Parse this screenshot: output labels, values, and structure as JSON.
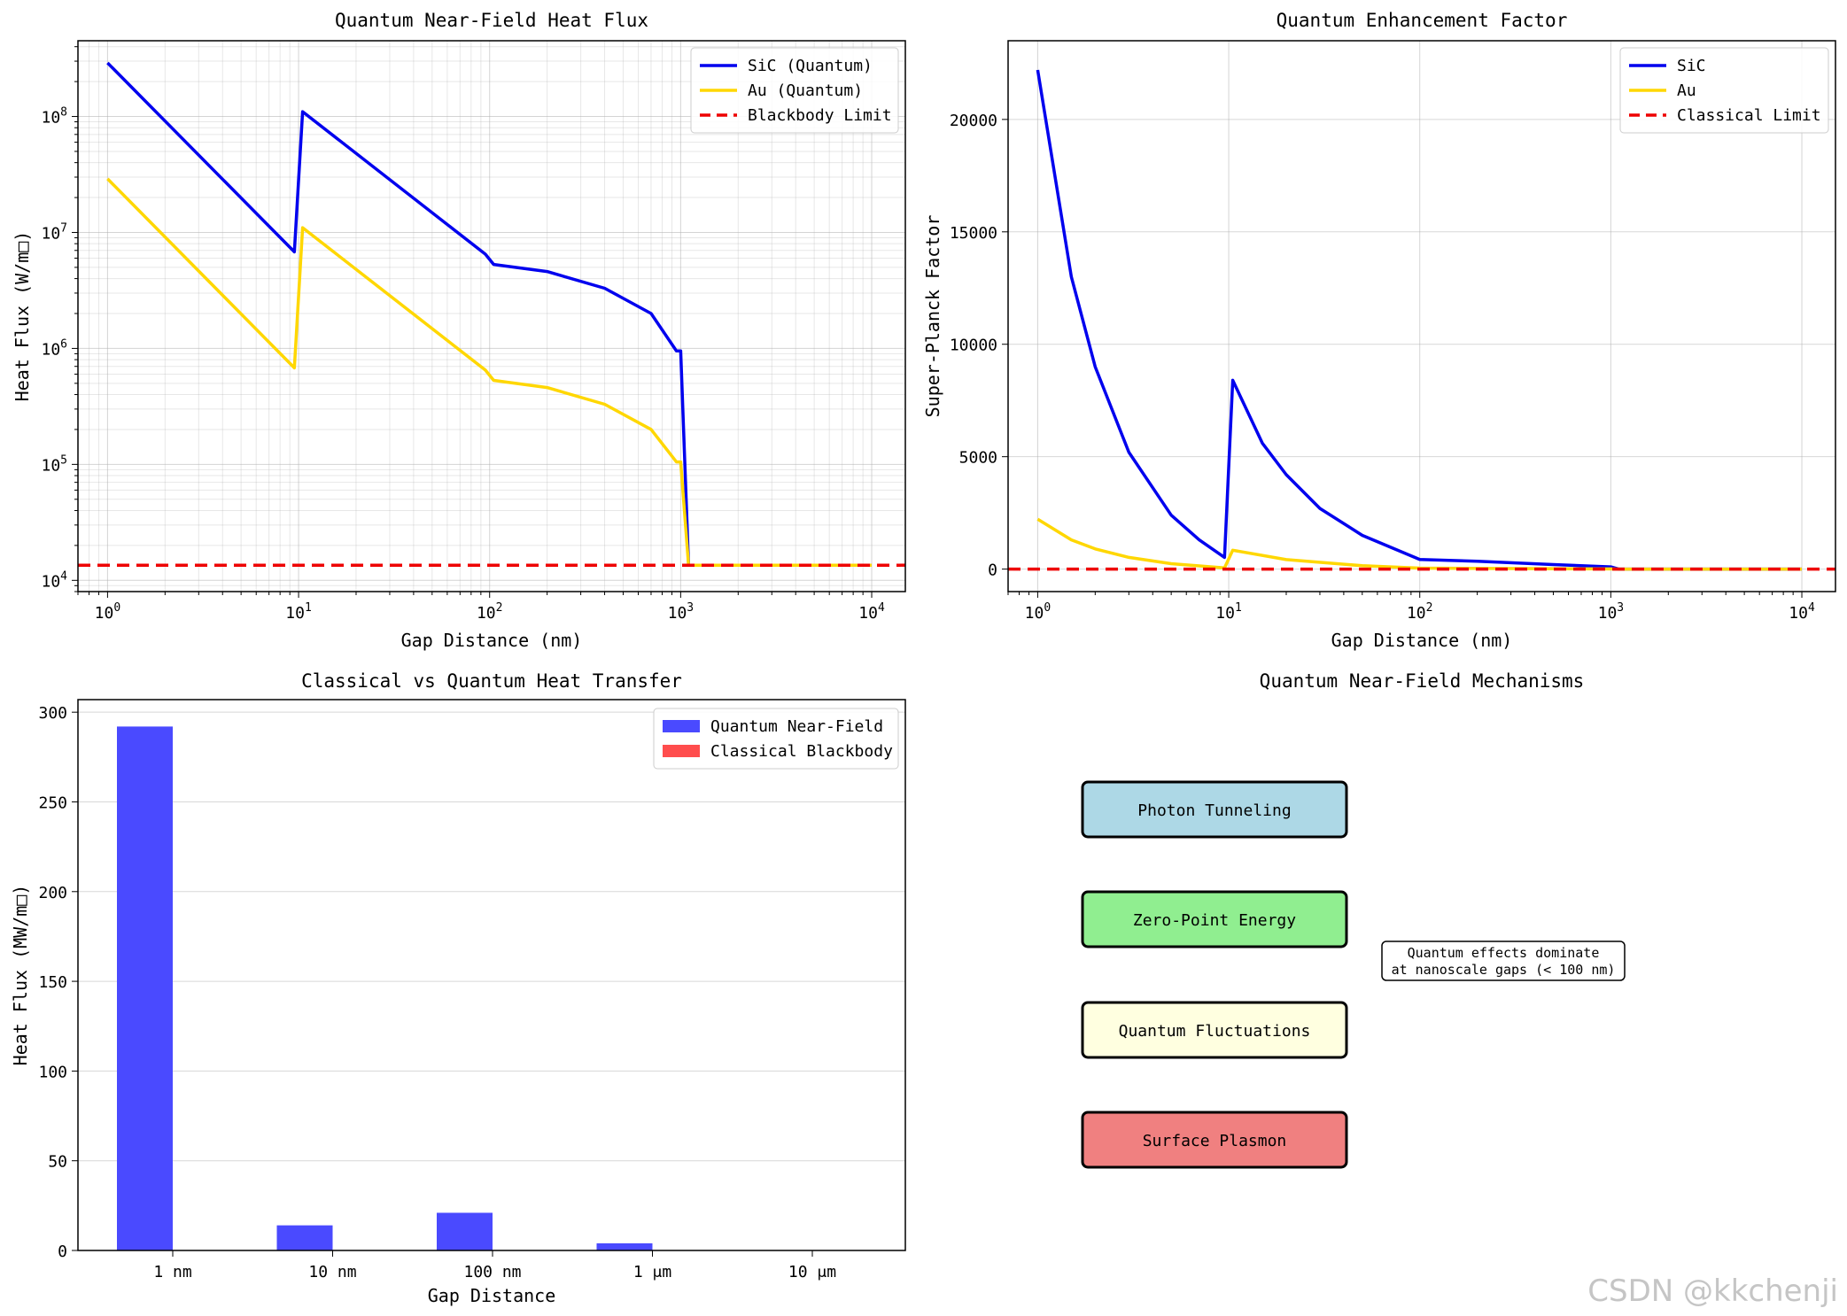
{
  "watermark": "CSDN @kkchenji",
  "chart_data": [
    {
      "type": "line",
      "title": "Quantum Near-Field Heat Flux",
      "xlabel": "Gap Distance (nm)",
      "ylabel": "Heat Flux (W/m□)",
      "xscale": "log",
      "yscale": "log",
      "xlim": [
        0.7,
        15000
      ],
      "ylim": [
        8000,
        450000000
      ],
      "xticks": [
        "10^0",
        "10^1",
        "10^2",
        "10^3",
        "10^4"
      ],
      "yticks": [
        "10^4",
        "10^5",
        "10^6",
        "10^7",
        "10^8"
      ],
      "grid": true,
      "grid_minor": true,
      "legend": "top-right",
      "series": [
        {
          "name": "SiC (Quantum)",
          "color": "#0000ee",
          "style": "solid",
          "points": [
            [
              1,
              290000000
            ],
            [
              9.5,
              6800000
            ],
            [
              10.5,
              110000000
            ],
            [
              95,
              6500000
            ],
            [
              105,
              5300000
            ],
            [
              200,
              4600000
            ],
            [
              400,
              3300000
            ],
            [
              700,
              2000000
            ],
            [
              950,
              950000
            ],
            [
              1000,
              950000
            ],
            [
              1100,
              13500
            ],
            [
              10000,
              13500
            ]
          ]
        },
        {
          "name": "Au (Quantum)",
          "color": "#ffd700",
          "style": "solid",
          "points": [
            [
              1,
              29000000
            ],
            [
              9.5,
              680000
            ],
            [
              10.5,
              11000000
            ],
            [
              95,
              650000
            ],
            [
              105,
              530000
            ],
            [
              200,
              460000
            ],
            [
              400,
              330000
            ],
            [
              700,
              200000
            ],
            [
              950,
              105000
            ],
            [
              1000,
              105000
            ],
            [
              1100,
              13500
            ],
            [
              10000,
              13500
            ]
          ]
        },
        {
          "name": "Blackbody Limit",
          "color": "#ee0000",
          "style": "dashed",
          "points": [
            [
              0.7,
              13500
            ],
            [
              15000,
              13500
            ]
          ]
        }
      ]
    },
    {
      "type": "line",
      "title": "Quantum Enhancement Factor",
      "xlabel": "Gap Distance (nm)",
      "ylabel": "Super-Planck Factor",
      "xscale": "log",
      "yscale": "linear",
      "xlim": [
        0.7,
        15000
      ],
      "ylim": [
        -1000,
        23500
      ],
      "xticks": [
        "10^0",
        "10^1",
        "10^2",
        "10^3",
        "10^4"
      ],
      "yticks": [
        0,
        5000,
        10000,
        15000,
        20000
      ],
      "grid": true,
      "legend": "top-right",
      "series": [
        {
          "name": "SiC",
          "color": "#0000ee",
          "style": "solid",
          "points": [
            [
              1,
              22200
            ],
            [
              1.5,
              13000
            ],
            [
              2,
              9000
            ],
            [
              3,
              5200
            ],
            [
              5,
              2400
            ],
            [
              7,
              1300
            ],
            [
              9.5,
              520
            ],
            [
              10.5,
              8400
            ],
            [
              15,
              5600
            ],
            [
              20,
              4200
            ],
            [
              30,
              2700
            ],
            [
              50,
              1500
            ],
            [
              100,
              430
            ],
            [
              200,
              350
            ],
            [
              500,
              200
            ],
            [
              1000,
              100
            ],
            [
              1100,
              0
            ],
            [
              10000,
              0
            ]
          ]
        },
        {
          "name": "Au",
          "color": "#ffd700",
          "style": "solid",
          "points": [
            [
              1,
              2220
            ],
            [
              1.5,
              1300
            ],
            [
              2,
              900
            ],
            [
              3,
              520
            ],
            [
              5,
              240
            ],
            [
              9.5,
              52
            ],
            [
              10.5,
              840
            ],
            [
              20,
              420
            ],
            [
              50,
              150
            ],
            [
              100,
              43
            ],
            [
              1000,
              10
            ],
            [
              1100,
              0
            ],
            [
              10000,
              0
            ]
          ]
        },
        {
          "name": "Classical Limit",
          "color": "#ee0000",
          "style": "dashed",
          "points": [
            [
              0.7,
              1
            ],
            [
              15000,
              1
            ]
          ]
        }
      ]
    },
    {
      "type": "bar",
      "title": "Classical vs Quantum Heat Transfer",
      "xlabel": "Gap Distance",
      "ylabel": "Heat Flux (MW/m□)",
      "categories": [
        "1 nm",
        "10 nm",
        "100 nm",
        "1 μm",
        "10 μm"
      ],
      "ylim": [
        0,
        307
      ],
      "yticks": [
        0,
        50,
        100,
        150,
        200,
        250,
        300
      ],
      "grid": true,
      "legend": "top-right",
      "series": [
        {
          "name": "Quantum Near-Field",
          "color": "#4a4aff",
          "values": [
            292,
            14,
            21,
            4,
            0
          ]
        },
        {
          "name": "Classical Blackbody",
          "color": "#ff4d4d",
          "values": [
            0.0135,
            0.0135,
            0.0135,
            0.0135,
            0.0135
          ]
        }
      ]
    }
  ],
  "mechanisms": {
    "title": "Quantum Near-Field Mechanisms",
    "boxes": [
      {
        "label": "Photon Tunneling",
        "color": "#add8e6"
      },
      {
        "label": "Zero-Point Energy",
        "color": "#90ee90"
      },
      {
        "label": "Quantum Fluctuations",
        "color": "#ffffe0"
      },
      {
        "label": "Surface Plasmon",
        "color": "#f08080"
      }
    ],
    "note_line1": "Quantum effects dominate",
    "note_line2": "at nanoscale gaps (< 100 nm)"
  }
}
